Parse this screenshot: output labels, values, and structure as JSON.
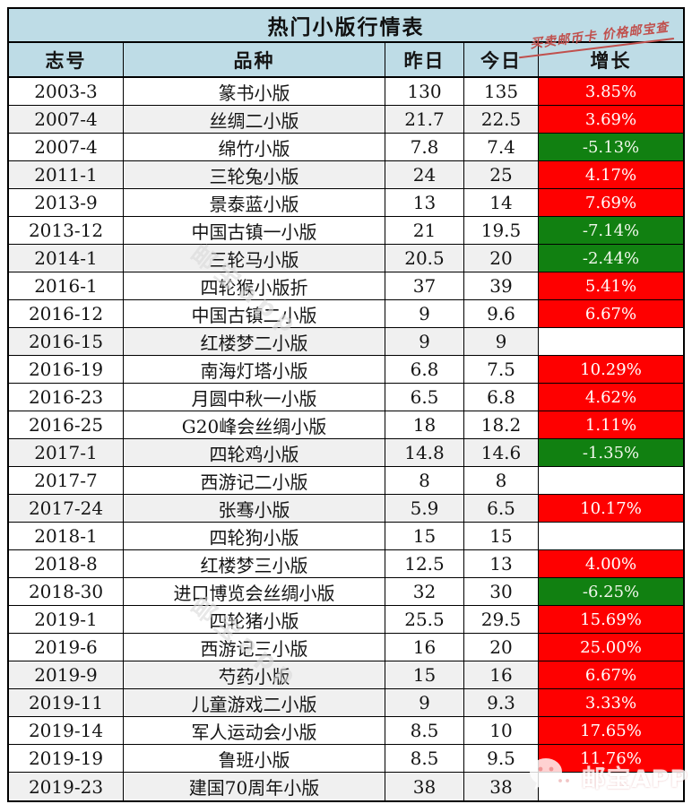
{
  "slogan": "买卖邮币卡 价格邮宝查",
  "watermark": {
    "text": "邮宝app",
    "brand": "邮宝APP"
  },
  "colors": {
    "header_blue": "#BEDCE6",
    "up_red": "#FE0000",
    "down_green": "#118011",
    "shade": "#F0F0F0",
    "border": "#000000",
    "slogan_red": "#C0504D",
    "watermark_gray": "#D9D9D9",
    "text": "#111111"
  },
  "chart_data": {
    "type": "table",
    "title": "热门小版行情表",
    "columns": [
      "志号",
      "品种",
      "昨日",
      "今日",
      "增长"
    ],
    "rows": [
      {
        "id": "2003-3",
        "variety": "篆书小版",
        "yesterday": "130",
        "today": "135",
        "growth": "3.85%",
        "trend": "up",
        "shaded": false
      },
      {
        "id": "2007-4",
        "variety": "丝绸二小版",
        "yesterday": "21.7",
        "today": "22.5",
        "growth": "3.69%",
        "trend": "up",
        "shaded": true
      },
      {
        "id": "2007-4",
        "variety": "绵竹小版",
        "yesterday": "7.8",
        "today": "7.4",
        "growth": "-5.13%",
        "trend": "down",
        "shaded": false
      },
      {
        "id": "2011-1",
        "variety": "三轮兔小版",
        "yesterday": "24",
        "today": "25",
        "growth": "4.17%",
        "trend": "up",
        "shaded": true
      },
      {
        "id": "2013-9",
        "variety": "景泰蓝小版",
        "yesterday": "13",
        "today": "14",
        "growth": "7.69%",
        "trend": "up",
        "shaded": false
      },
      {
        "id": "2013-12",
        "variety": "中国古镇一小版",
        "yesterday": "21",
        "today": "19.5",
        "growth": "-7.14%",
        "trend": "down",
        "shaded": false
      },
      {
        "id": "2014-1",
        "variety": "三轮马小版",
        "yesterday": "20.5",
        "today": "20",
        "growth": "-2.44%",
        "trend": "down",
        "shaded": true
      },
      {
        "id": "2016-1",
        "variety": "四轮猴小版折",
        "yesterday": "37",
        "today": "39",
        "growth": "5.41%",
        "trend": "up",
        "shaded": false
      },
      {
        "id": "2016-12",
        "variety": "中国古镇二小版",
        "yesterday": "9",
        "today": "9.6",
        "growth": "6.67%",
        "trend": "up",
        "shaded": false
      },
      {
        "id": "2016-15",
        "variety": "红楼梦二小版",
        "yesterday": "9",
        "today": "9",
        "growth": "",
        "trend": "flat",
        "shaded": true
      },
      {
        "id": "2016-19",
        "variety": "南海灯塔小版",
        "yesterday": "6.8",
        "today": "7.5",
        "growth": "10.29%",
        "trend": "up",
        "shaded": false
      },
      {
        "id": "2016-23",
        "variety": "月圆中秋一小版",
        "yesterday": "6.5",
        "today": "6.8",
        "growth": "4.62%",
        "trend": "up",
        "shaded": false
      },
      {
        "id": "2016-25",
        "variety": "G20峰会丝绸小版",
        "yesterday": "18",
        "today": "18.2",
        "growth": "1.11%",
        "trend": "up",
        "shaded": false
      },
      {
        "id": "2017-1",
        "variety": "四轮鸡小版",
        "yesterday": "14.8",
        "today": "14.6",
        "growth": "-1.35%",
        "trend": "down",
        "shaded": true
      },
      {
        "id": "2017-7",
        "variety": "西游记二小版",
        "yesterday": "8",
        "today": "8",
        "growth": "",
        "trend": "flat",
        "shaded": false
      },
      {
        "id": "2017-24",
        "variety": "张骞小版",
        "yesterday": "5.9",
        "today": "6.5",
        "growth": "10.17%",
        "trend": "up",
        "shaded": true
      },
      {
        "id": "2018-1",
        "variety": "四轮狗小版",
        "yesterday": "15",
        "today": "15",
        "growth": "",
        "trend": "flat",
        "shaded": false
      },
      {
        "id": "2018-8",
        "variety": "红楼梦三小版",
        "yesterday": "12.5",
        "today": "13",
        "growth": "4.00%",
        "trend": "up",
        "shaded": false
      },
      {
        "id": "2018-30",
        "variety": "进口博览会丝绸小版",
        "yesterday": "32",
        "today": "30",
        "growth": "-6.25%",
        "trend": "down",
        "shaded": false
      },
      {
        "id": "2019-1",
        "variety": "四轮猪小版",
        "yesterday": "25.5",
        "today": "29.5",
        "growth": "15.69%",
        "trend": "up",
        "shaded": false
      },
      {
        "id": "2019-6",
        "variety": "西游记三小版",
        "yesterday": "16",
        "today": "20",
        "growth": "25.00%",
        "trend": "up",
        "shaded": false
      },
      {
        "id": "2019-9",
        "variety": "芍药小版",
        "yesterday": "15",
        "today": "16",
        "growth": "6.67%",
        "trend": "up",
        "shaded": true
      },
      {
        "id": "2019-11",
        "variety": "儿童游戏二小版",
        "yesterday": "9",
        "today": "9.3",
        "growth": "3.33%",
        "trend": "up",
        "shaded": true
      },
      {
        "id": "2019-14",
        "variety": "军人运动会小版",
        "yesterday": "8.5",
        "today": "10",
        "growth": "17.65%",
        "trend": "up",
        "shaded": false
      },
      {
        "id": "2019-19",
        "variety": "鲁班小版",
        "yesterday": "8.5",
        "today": "9.5",
        "growth": "11.76%",
        "trend": "up",
        "shaded": false
      },
      {
        "id": "2019-23",
        "variety": "建国70周年小版",
        "yesterday": "38",
        "today": "38",
        "growth": "",
        "trend": "flat",
        "shaded": true
      }
    ]
  }
}
